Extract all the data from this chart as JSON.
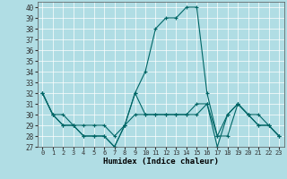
{
  "xlabel": "Humidex (Indice chaleur)",
  "bg_color": "#b0dde4",
  "line_color": "#006666",
  "xlim": [
    -0.5,
    23.5
  ],
  "ylim": [
    27,
    40.5
  ],
  "yticks": [
    27,
    28,
    29,
    30,
    31,
    32,
    33,
    34,
    35,
    36,
    37,
    38,
    39,
    40
  ],
  "xticks": [
    0,
    1,
    2,
    3,
    4,
    5,
    6,
    7,
    8,
    9,
    10,
    11,
    12,
    13,
    14,
    15,
    16,
    17,
    18,
    19,
    20,
    21,
    22,
    23
  ],
  "line1_x": [
    0,
    1,
    2,
    3,
    4,
    5,
    6,
    7,
    8,
    9,
    10,
    11,
    12,
    13,
    14,
    15,
    16,
    17,
    18,
    19,
    20,
    21,
    22,
    23
  ],
  "line1_y": [
    32,
    30,
    29,
    29,
    28,
    28,
    28,
    27,
    29,
    32,
    30,
    30,
    30,
    30,
    30,
    31,
    31,
    27,
    30,
    31,
    30,
    30,
    29,
    28
  ],
  "line2_x": [
    0,
    1,
    2,
    3,
    4,
    5,
    6,
    7,
    8,
    9,
    10,
    11,
    12,
    13,
    14,
    15,
    16,
    17,
    18,
    19,
    20,
    21,
    22,
    23
  ],
  "line2_y": [
    32,
    30,
    29,
    29,
    28,
    28,
    28,
    27,
    29,
    32,
    34,
    38,
    39,
    39,
    40,
    40,
    32,
    28,
    30,
    31,
    30,
    29,
    29,
    28
  ],
  "line3_x": [
    0,
    1,
    2,
    3,
    4,
    5,
    6,
    7,
    8,
    9,
    10,
    11,
    12,
    13,
    14,
    15,
    16,
    17,
    18,
    19,
    20,
    21,
    22,
    23
  ],
  "line3_y": [
    32,
    30,
    30,
    29,
    29,
    29,
    29,
    28,
    29,
    30,
    30,
    30,
    30,
    30,
    30,
    30,
    31,
    28,
    28,
    31,
    30,
    29,
    29,
    28
  ]
}
